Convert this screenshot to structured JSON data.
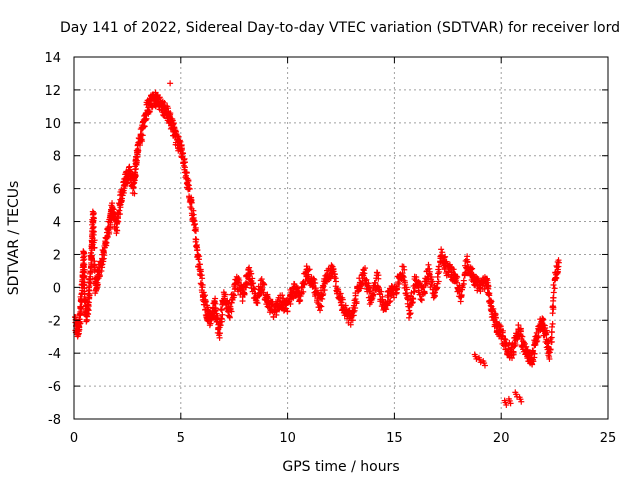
{
  "chart_data": {
    "type": "scatter",
    "title": "Day 141 of 2022, Sidereal Day-to-day VTEC variation (SDTVAR) for receiver lord",
    "xlabel": "GPS time / hours",
    "ylabel": "SDTVAR / TECUs",
    "xlim": [
      0,
      25
    ],
    "ylim": [
      -8,
      14
    ],
    "xticks": [
      0,
      5,
      10,
      15,
      20,
      25
    ],
    "yticks": [
      -8,
      -6,
      -4,
      -2,
      0,
      2,
      4,
      6,
      8,
      10,
      12,
      14
    ],
    "grid": true,
    "marker": "+",
    "color": "#ff0000",
    "series": [
      {
        "name": "SDTVAR",
        "trace": [
          [
            0.05,
            -2.2
          ],
          [
            0.2,
            -2.6
          ],
          [
            0.3,
            -1.5
          ],
          [
            0.4,
            0.5
          ],
          [
            0.45,
            2.0
          ],
          [
            0.5,
            -0.5
          ],
          [
            0.6,
            -1.8
          ],
          [
            0.7,
            -0.5
          ],
          [
            0.8,
            1.5
          ],
          [
            0.85,
            3.0
          ],
          [
            0.9,
            4.5
          ],
          [
            1.0,
            0.0
          ],
          [
            1.1,
            0.5
          ],
          [
            1.3,
            1.5
          ],
          [
            1.5,
            3.0
          ],
          [
            1.7,
            4.0
          ],
          [
            1.8,
            5.0
          ],
          [
            2.0,
            3.5
          ],
          [
            2.2,
            5.5
          ],
          [
            2.4,
            6.5
          ],
          [
            2.6,
            7.0
          ],
          [
            2.8,
            6.0
          ],
          [
            2.9,
            7.5
          ],
          [
            3.0,
            8.5
          ],
          [
            3.2,
            9.5
          ],
          [
            3.4,
            10.8
          ],
          [
            3.6,
            11.2
          ],
          [
            3.8,
            11.5
          ],
          [
            4.0,
            11.2
          ],
          [
            4.2,
            10.9
          ],
          [
            4.4,
            10.5
          ],
          [
            4.6,
            9.8
          ],
          [
            4.8,
            9.0
          ],
          [
            5.0,
            8.5
          ],
          [
            5.2,
            7.2
          ],
          [
            5.4,
            5.8
          ],
          [
            5.6,
            4.0
          ],
          [
            5.8,
            2.0
          ],
          [
            6.0,
            0.0
          ],
          [
            6.2,
            -1.5
          ],
          [
            6.4,
            -2.0
          ],
          [
            6.6,
            -1.0
          ],
          [
            6.8,
            -2.8
          ],
          [
            7.0,
            -0.5
          ],
          [
            7.3,
            -1.5
          ],
          [
            7.6,
            0.5
          ],
          [
            7.9,
            -0.5
          ],
          [
            8.2,
            1.0
          ],
          [
            8.5,
            -0.8
          ],
          [
            8.8,
            0.2
          ],
          [
            9.1,
            -1.0
          ],
          [
            9.4,
            -1.5
          ],
          [
            9.7,
            -0.8
          ],
          [
            10.0,
            -1.2
          ],
          [
            10.3,
            0.0
          ],
          [
            10.6,
            -0.5
          ],
          [
            10.9,
            1.0
          ],
          [
            11.2,
            0.2
          ],
          [
            11.5,
            -1.0
          ],
          [
            11.8,
            0.5
          ],
          [
            12.1,
            1.0
          ],
          [
            12.4,
            -0.5
          ],
          [
            12.7,
            -1.5
          ],
          [
            13.0,
            -2.0
          ],
          [
            13.3,
            0.0
          ],
          [
            13.6,
            0.8
          ],
          [
            13.9,
            -0.8
          ],
          [
            14.2,
            0.5
          ],
          [
            14.5,
            -1.2
          ],
          [
            14.8,
            -0.5
          ],
          [
            15.1,
            0.0
          ],
          [
            15.4,
            1.0
          ],
          [
            15.7,
            -1.5
          ],
          [
            16.0,
            0.5
          ],
          [
            16.3,
            -0.5
          ],
          [
            16.6,
            1.0
          ],
          [
            16.9,
            -0.5
          ],
          [
            17.2,
            2.0
          ],
          [
            17.5,
            1.0
          ],
          [
            17.8,
            0.8
          ],
          [
            18.1,
            -0.5
          ],
          [
            18.4,
            1.5
          ],
          [
            18.7,
            0.5
          ],
          [
            19.0,
            0.0
          ],
          [
            19.3,
            0.5
          ],
          [
            19.5,
            -1.0
          ],
          [
            19.7,
            -2.0
          ],
          [
            19.9,
            -2.5
          ],
          [
            20.2,
            -3.5
          ],
          [
            20.5,
            -4.0
          ],
          [
            20.8,
            -2.5
          ],
          [
            21.1,
            -3.8
          ],
          [
            21.4,
            -4.5
          ],
          [
            21.6,
            -3.5
          ],
          [
            21.9,
            -2.0
          ],
          [
            22.1,
            -3.0
          ],
          [
            22.3,
            -4.2
          ],
          [
            22.5,
            0.5
          ],
          [
            22.7,
            1.5
          ]
        ],
        "isolated": [
          [
            4.5,
            12.4
          ],
          [
            18.8,
            -4.2
          ],
          [
            19.0,
            -4.4
          ],
          [
            19.2,
            -4.6
          ],
          [
            20.2,
            -7.0
          ],
          [
            20.4,
            -6.9
          ],
          [
            20.7,
            -6.5
          ],
          [
            20.9,
            -6.8
          ]
        ]
      }
    ]
  }
}
